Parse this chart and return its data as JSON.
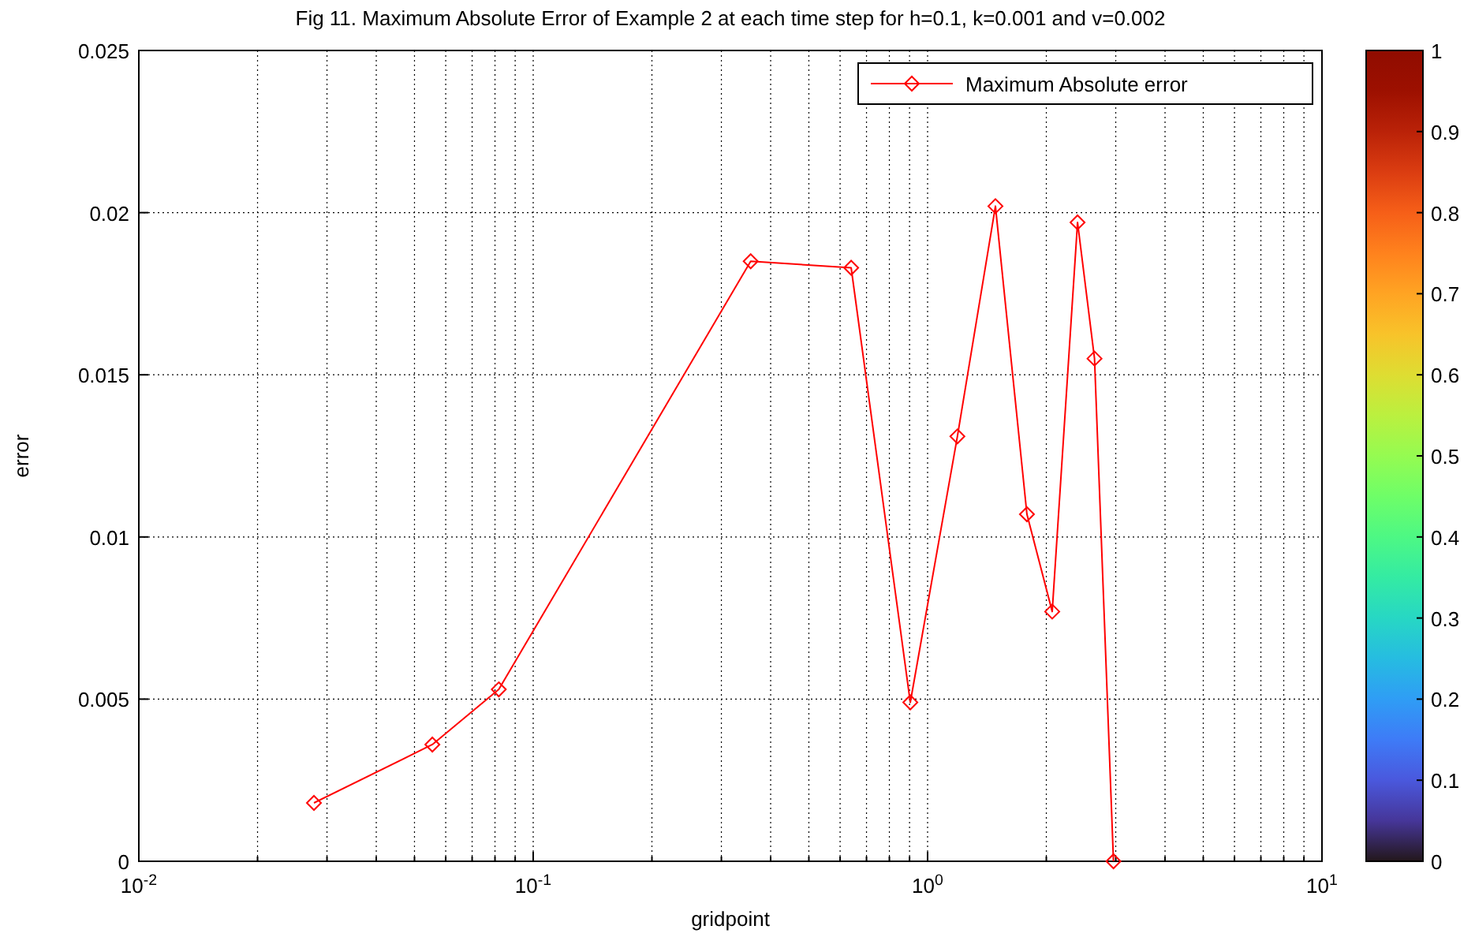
{
  "chart_data": {
    "type": "line",
    "title": "Fig 11. Maximum Absolute Error of Example 2 at each time step for h=0.1, k=0.001  and v=0.002",
    "xlabel": "gridpoint",
    "ylabel": "error",
    "x": [
      0.0278,
      0.0555,
      0.0818,
      0.356,
      0.64,
      0.904,
      1.19,
      1.486,
      1.786,
      2.07,
      2.4,
      2.65,
      2.96
    ],
    "series": [
      {
        "name": "Maximum Absolute error",
        "color": "#ff0000",
        "values": [
          0.0018,
          0.0036,
          0.0053,
          0.0185,
          0.0183,
          0.0049,
          0.0131,
          0.0202,
          0.0107,
          0.0077,
          0.0197,
          0.0155,
          0
        ]
      }
    ],
    "log": "x",
    "xlim": [
      0.01,
      10
    ],
    "ylim": [
      0,
      0.025
    ],
    "xticks": [
      {
        "value": 0.01,
        "label": "10$^{-2}$"
      },
      {
        "value": 0.02,
        "label": null
      },
      {
        "value": 0.03,
        "label": null
      },
      {
        "value": 0.04,
        "label": null
      },
      {
        "value": 0.05,
        "label": null
      },
      {
        "value": 0.06,
        "label": null
      },
      {
        "value": 0.07,
        "label": null
      },
      {
        "value": 0.08,
        "label": null
      },
      {
        "value": 0.09,
        "label": null
      },
      {
        "value": 0.1,
        "label": "10$^{-1}$"
      },
      {
        "value": 0.2,
        "label": null
      },
      {
        "value": 0.3,
        "label": null
      },
      {
        "value": 0.4,
        "label": null
      },
      {
        "value": 0.5,
        "label": null
      },
      {
        "value": 0.6,
        "label": null
      },
      {
        "value": 0.7,
        "label": null
      },
      {
        "value": 0.8,
        "label": null
      },
      {
        "value": 0.9,
        "label": null
      },
      {
        "value": 1,
        "label": "10$^{0}$"
      },
      {
        "value": 2,
        "label": null
      },
      {
        "value": 3,
        "label": null
      },
      {
        "value": 4,
        "label": null
      },
      {
        "value": 5,
        "label": null
      },
      {
        "value": 6,
        "label": null
      },
      {
        "value": 7,
        "label": null
      },
      {
        "value": 8,
        "label": null
      },
      {
        "value": 9,
        "label": null
      },
      {
        "value": 10,
        "label": "10$^{1}$"
      }
    ],
    "yticks": [
      0,
      0.005,
      0.01,
      0.015,
      0.02,
      0.025
    ],
    "grid": true,
    "legend": "top right",
    "marker": "diamond",
    "line_style": "solid",
    "clim": [
      0,
      1
    ],
    "cticks": [
      0,
      0.1,
      0.2,
      0.3,
      0.4,
      0.5,
      0.6,
      0.7,
      0.8,
      0.9,
      1
    ]
  }
}
